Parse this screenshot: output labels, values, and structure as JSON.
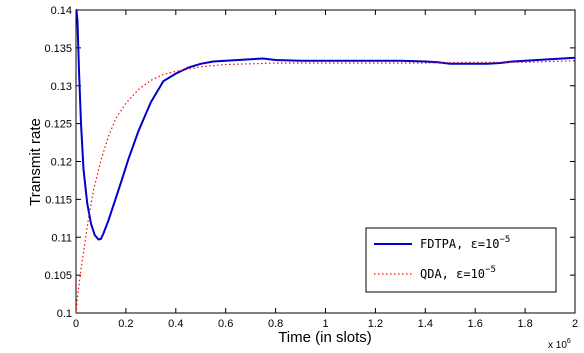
{
  "chart_data": {
    "type": "line",
    "xlabel": "Time (in slots)",
    "ylabel": "Transmit rate",
    "x_multiplier": {
      "base": "x 10",
      "exp": "6"
    },
    "xlim": [
      0,
      2
    ],
    "ylim": [
      0.1,
      0.14
    ],
    "xticks": [
      0,
      0.2,
      0.4,
      0.6,
      0.8,
      1,
      1.2,
      1.4,
      1.6,
      1.8,
      2
    ],
    "xtick_labels": [
      "0",
      "0.2",
      "0.4",
      "0.6",
      "0.8",
      "1",
      "1.2",
      "1.4",
      "1.6",
      "1.8",
      "2"
    ],
    "yticks": [
      0.1,
      0.105,
      0.11,
      0.115,
      0.12,
      0.125,
      0.13,
      0.135,
      0.14
    ],
    "ytick_labels": [
      "0.1",
      "0.105",
      "0.11",
      "0.115",
      "0.12",
      "0.125",
      "0.13",
      "0.135",
      "0.14"
    ],
    "grid": false,
    "legend_position": "lower-right",
    "series": [
      {
        "name": "FDTPA",
        "legend_base": "FDTPA, ε=10",
        "legend_exp": "−5",
        "color": "#0000cc",
        "style": "solid",
        "x": [
          0,
          0.002,
          0.006,
          0.012,
          0.02,
          0.03,
          0.045,
          0.06,
          0.075,
          0.09,
          0.1,
          0.11,
          0.13,
          0.15,
          0.18,
          0.21,
          0.25,
          0.3,
          0.35,
          0.4,
          0.45,
          0.5,
          0.55,
          0.6,
          0.65,
          0.7,
          0.75,
          0.8,
          0.9,
          1.0,
          1.1,
          1.2,
          1.3,
          1.4,
          1.45,
          1.5,
          1.55,
          1.6,
          1.65,
          1.7,
          1.75,
          1.8,
          1.85,
          1.9,
          1.95,
          2.0
        ],
        "y": [
          0.14,
          0.14,
          0.1385,
          0.132,
          0.125,
          0.119,
          0.1145,
          0.1118,
          0.1103,
          0.1097,
          0.1098,
          0.1105,
          0.1122,
          0.1142,
          0.1172,
          0.1203,
          0.124,
          0.1278,
          0.1306,
          0.1316,
          0.1324,
          0.1329,
          0.1332,
          0.1333,
          0.1334,
          0.1335,
          0.1336,
          0.1334,
          0.1333,
          0.1333,
          0.1333,
          0.1333,
          0.1333,
          0.1332,
          0.1331,
          0.1329,
          0.1329,
          0.1329,
          0.1329,
          0.133,
          0.1332,
          0.1333,
          0.1334,
          0.1335,
          0.1336,
          0.1337
        ]
      },
      {
        "name": "QDA",
        "legend_base": "QDA, ε=10",
        "legend_exp": "−5",
        "color": "#ff0000",
        "style": "dotted",
        "x": [
          0,
          0.005,
          0.01,
          0.02,
          0.03,
          0.05,
          0.07,
          0.1,
          0.13,
          0.16,
          0.2,
          0.25,
          0.3,
          0.35,
          0.4,
          0.45,
          0.5,
          0.6,
          0.7,
          0.8,
          1.0,
          1.2,
          1.4,
          1.6,
          1.8,
          1.9,
          2.0
        ],
        "y": [
          0.1,
          0.1018,
          0.1032,
          0.1058,
          0.108,
          0.1125,
          0.1162,
          0.1202,
          0.1233,
          0.1257,
          0.1277,
          0.1295,
          0.1307,
          0.1315,
          0.1319,
          0.1322,
          0.1325,
          0.1328,
          0.1329,
          0.133,
          0.133,
          0.133,
          0.133,
          0.1331,
          0.1331,
          0.1332,
          0.1333
        ]
      }
    ]
  }
}
